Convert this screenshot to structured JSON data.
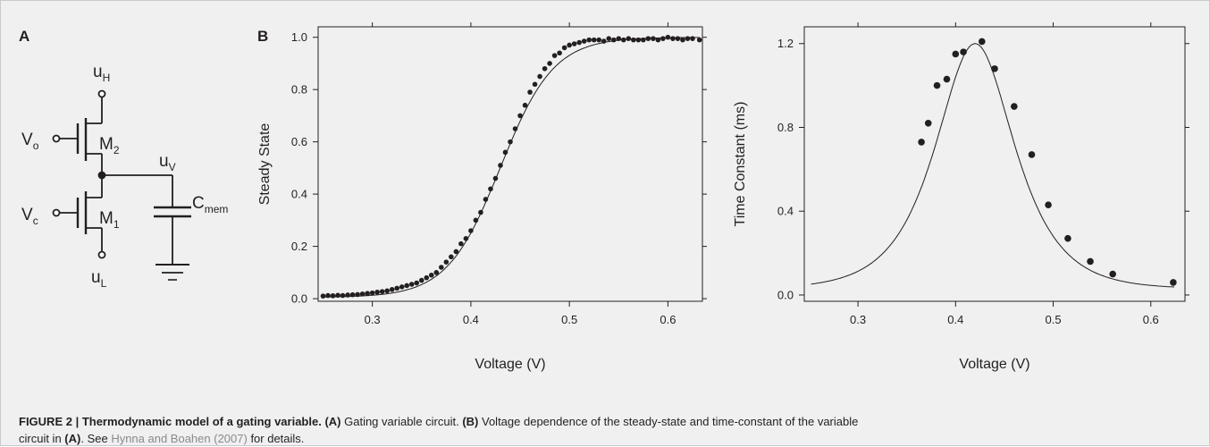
{
  "figure": {
    "panel_a_label": "A",
    "panel_b_label": "B",
    "circuit": {
      "node_top": {
        "main": "u",
        "sub": "H"
      },
      "node_bottom": {
        "main": "u",
        "sub": "L"
      },
      "node_out": {
        "main": "u",
        "sub": "V"
      },
      "input_top": {
        "main": "V",
        "sub": "o"
      },
      "input_bottom": {
        "main": "V",
        "sub": "c"
      },
      "transistor_top": {
        "main": "M",
        "sub": "2"
      },
      "transistor_bottom": {
        "main": "M",
        "sub": "1"
      },
      "capacitor": {
        "main": "C",
        "sub": "mem"
      }
    }
  },
  "caption": {
    "heading": "FIGURE 2 | Thermodynamic model of a gating variable.",
    "part1_label": "(A)",
    "part1_text": " Gating variable circuit. ",
    "part2_label": "(B)",
    "part2_text": " Voltage dependence of the steady-state and time-constant of the variable",
    "line2_text": "circuit in ",
    "line2_label": "(A)",
    "line2_mid": ". See ",
    "reference": "Hynna and Boahen (2007)",
    "line2_end": " for details."
  },
  "chart_data": [
    {
      "type": "scatter",
      "title": "",
      "xlabel": "Voltage (V)",
      "ylabel": "Steady State",
      "xlim": [
        0.245,
        0.635
      ],
      "ylim": [
        -0.01,
        1.04
      ],
      "xticks": [
        "0.3",
        "0.4",
        "0.5",
        "0.6"
      ],
      "yticks": [
        "0.0",
        "0.2",
        "0.4",
        "0.6",
        "0.8",
        "1.0"
      ],
      "fit_curve": {
        "model": "sigmoid",
        "midpoint": 0.43,
        "slope": 0.027,
        "baseline": 0.005
      },
      "series": [
        {
          "x": [
            0.25,
            0.255,
            0.26,
            0.265,
            0.27,
            0.275,
            0.28,
            0.285,
            0.29,
            0.295,
            0.3,
            0.305,
            0.31,
            0.315,
            0.32,
            0.325,
            0.33,
            0.335,
            0.34,
            0.345,
            0.35,
            0.355,
            0.36,
            0.365,
            0.37,
            0.375,
            0.38,
            0.385,
            0.39,
            0.395,
            0.4,
            0.405,
            0.41,
            0.415,
            0.42,
            0.425,
            0.43,
            0.435,
            0.44,
            0.445,
            0.45,
            0.455,
            0.46,
            0.465,
            0.47,
            0.475,
            0.48,
            0.485,
            0.49,
            0.495,
            0.5,
            0.505,
            0.51,
            0.515,
            0.52,
            0.525,
            0.53,
            0.535,
            0.54,
            0.545,
            0.55,
            0.555,
            0.56,
            0.565,
            0.57,
            0.575,
            0.58,
            0.585,
            0.59,
            0.595,
            0.6,
            0.605,
            0.61,
            0.615,
            0.62,
            0.625,
            0.632
          ],
          "y": [
            0.01,
            0.012,
            0.011,
            0.013,
            0.012,
            0.014,
            0.015,
            0.016,
            0.018,
            0.02,
            0.022,
            0.025,
            0.027,
            0.03,
            0.035,
            0.04,
            0.045,
            0.05,
            0.055,
            0.06,
            0.07,
            0.08,
            0.09,
            0.1,
            0.12,
            0.14,
            0.16,
            0.18,
            0.21,
            0.23,
            0.26,
            0.3,
            0.33,
            0.38,
            0.42,
            0.46,
            0.51,
            0.56,
            0.6,
            0.65,
            0.7,
            0.74,
            0.79,
            0.82,
            0.85,
            0.88,
            0.9,
            0.93,
            0.94,
            0.96,
            0.97,
            0.975,
            0.98,
            0.985,
            0.99,
            0.99,
            0.99,
            0.985,
            0.995,
            0.99,
            0.995,
            0.99,
            0.995,
            0.99,
            0.99,
            0.99,
            0.995,
            0.995,
            0.99,
            0.995,
            1.0,
            0.995,
            0.995,
            0.99,
            0.995,
            0.995,
            0.99
          ]
        }
      ]
    },
    {
      "type": "scatter",
      "title": "",
      "xlabel": "Voltage (V)",
      "ylabel": "Time Constant (ms)",
      "xlim": [
        0.245,
        0.635
      ],
      "ylim": [
        -0.03,
        1.28
      ],
      "xticks": [
        "0.3",
        "0.4",
        "0.5",
        "0.6"
      ],
      "yticks": [
        "0.0",
        "0.4",
        "0.8",
        "1.2"
      ],
      "fit_curve": {
        "model": "bell",
        "peak_x": 0.42,
        "peak_y": 1.2,
        "width": 0.036,
        "baseline": 0.03
      },
      "series": [
        {
          "x": [
            0.365,
            0.372,
            0.381,
            0.391,
            0.4,
            0.408,
            0.427,
            0.44,
            0.46,
            0.478,
            0.495,
            0.515,
            0.538,
            0.561,
            0.623
          ],
          "y": [
            0.73,
            0.82,
            1.0,
            1.03,
            1.15,
            1.16,
            1.21,
            1.08,
            0.9,
            0.67,
            0.43,
            0.27,
            0.16,
            0.1,
            0.06
          ]
        }
      ]
    }
  ]
}
